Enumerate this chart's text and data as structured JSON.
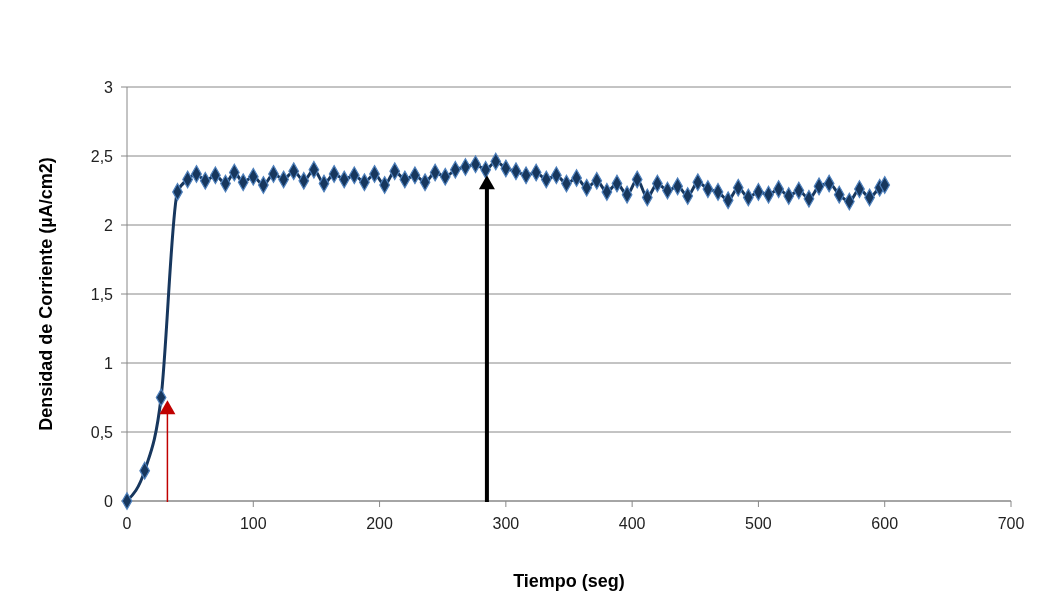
{
  "chart_data": {
    "type": "line",
    "xlabel": "Tiempo (seg)",
    "ylabel": "Densidad de Corriente (µA/cm2)",
    "xlim": [
      0,
      700
    ],
    "xticks": [
      0,
      100,
      200,
      300,
      400,
      500,
      600,
      700
    ],
    "ylim": [
      0,
      3
    ],
    "yticks": [
      0,
      {
        "value": 0.5,
        "label": "0,5"
      },
      1,
      {
        "value": 1.5,
        "label": "1,5"
      },
      2,
      {
        "value": 2.5,
        "label": "2,5"
      },
      3
    ],
    "grid": "y",
    "marker": "diamond",
    "line_style": "solid",
    "series": [
      {
        "color": "#17375e",
        "x": [
          0,
          14,
          27,
          40,
          48,
          55,
          62,
          70,
          78,
          85,
          92,
          100,
          108,
          116,
          124,
          132,
          140,
          148,
          156,
          164,
          172,
          180,
          188,
          196,
          204,
          212,
          220,
          228,
          236,
          244,
          252,
          260,
          268,
          276,
          284,
          292,
          300,
          308,
          316,
          324,
          332,
          340,
          348,
          356,
          364,
          372,
          380,
          388,
          396,
          404,
          412,
          420,
          428,
          436,
          444,
          452,
          460,
          468,
          476,
          484,
          492,
          500,
          508,
          516,
          524,
          532,
          540,
          548,
          556,
          564,
          572,
          580,
          588,
          596,
          600
        ],
        "values": [
          0,
          0.22,
          0.75,
          2.24,
          2.33,
          2.37,
          2.32,
          2.36,
          2.3,
          2.38,
          2.31,
          2.35,
          2.29,
          2.37,
          2.33,
          2.39,
          2.32,
          2.4,
          2.3,
          2.37,
          2.33,
          2.36,
          2.31,
          2.37,
          2.29,
          2.39,
          2.33,
          2.36,
          2.31,
          2.38,
          2.35,
          2.4,
          2.42,
          2.44,
          2.4,
          2.46,
          2.41,
          2.39,
          2.36,
          2.38,
          2.33,
          2.36,
          2.3,
          2.34,
          2.27,
          2.32,
          2.24,
          2.3,
          2.22,
          2.33,
          2.2,
          2.3,
          2.25,
          2.28,
          2.21,
          2.31,
          2.26,
          2.24,
          2.18,
          2.27,
          2.2,
          2.24,
          2.22,
          2.26,
          2.21,
          2.25,
          2.19,
          2.28,
          2.3,
          2.22,
          2.17,
          2.26,
          2.2,
          2.27,
          2.29
        ]
      }
    ]
  }
}
